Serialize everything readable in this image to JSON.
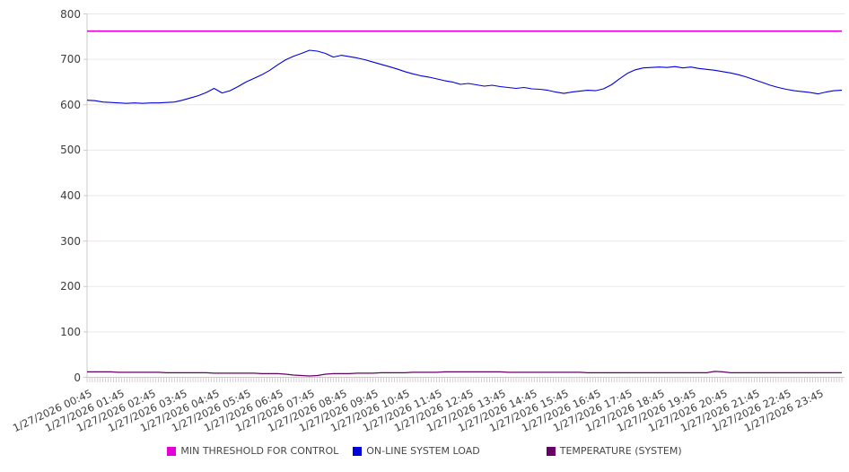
{
  "colors": {
    "background": "#ffffff",
    "grid": "#ece7e7",
    "axis": "#cfc9c9",
    "minor_tick": "#bdadbd",
    "label_text": "#3d3d3d",
    "legend_text": "#474747",
    "threshold_magenta": "#e600d8",
    "load_blue": "#0000dd",
    "temperature_purple": "#660066"
  },
  "legend": {
    "position": "bottom",
    "items": [
      {
        "label": "MIN THRESHOLD FOR CONTROL",
        "color": "#e600d8"
      },
      {
        "label": "ON-LINE SYSTEM LOAD",
        "color": "#0000dd"
      },
      {
        "label": "TEMPERATURE (SYSTEM)",
        "color": "#660066"
      }
    ]
  },
  "chart_data": {
    "type": "line",
    "title": "",
    "xlabel": "",
    "ylabel": "",
    "ylim": [
      0,
      800
    ],
    "y_ticks": [
      0,
      100,
      200,
      300,
      400,
      500,
      600,
      700,
      800
    ],
    "grid": true,
    "legend_position": "bottom",
    "sample_interval_minutes": 15,
    "x_tick_labels": [
      "1/27/2026 00:45",
      "1/27/2026 01:45",
      "1/27/2026 02:45",
      "1/27/2026 03:45",
      "1/27/2026 04:45",
      "1/27/2026 05:45",
      "1/27/2026 06:45",
      "1/27/2026 07:45",
      "1/27/2026 08:45",
      "1/27/2026 09:45",
      "1/27/2026 10:45",
      "1/27/2026 11:45",
      "1/27/2026 12:45",
      "1/27/2026 13:45",
      "1/27/2026 14:45",
      "1/27/2026 15:45",
      "1/27/2026 16:45",
      "1/27/2026 17:45",
      "1/27/2026 18:45",
      "1/27/2026 19:45",
      "1/27/2026 20:45",
      "1/27/2026 21:45",
      "1/27/2026 22:45",
      "1/27/2026 23:45"
    ],
    "samples_per_x_tick": 4,
    "minor_ticks_per_sample": 3,
    "series": [
      {
        "name": "MIN THRESHOLD FOR CONTROL",
        "color": "#e600d8",
        "width": 1.6,
        "constant": 762
      },
      {
        "name": "ON-LINE SYSTEM LOAD",
        "color": "#0000dd",
        "width": 1.1,
        "values": [
          610,
          609,
          606,
          605,
          604,
          603,
          604,
          603,
          604,
          604,
          605,
          606,
          610,
          615,
          620,
          627,
          636,
          626,
          631,
          640,
          650,
          658,
          666,
          676,
          688,
          699,
          707,
          713,
          720,
          718,
          713,
          705,
          709,
          706,
          703,
          699,
          694,
          689,
          684,
          679,
          673,
          668,
          664,
          661,
          657,
          653,
          650,
          645,
          647,
          644,
          641,
          643,
          640,
          638,
          636,
          638,
          635,
          634,
          632,
          628,
          625,
          628,
          630,
          632,
          631,
          635,
          644,
          657,
          669,
          677,
          681,
          682,
          683,
          682,
          684,
          681,
          683,
          680,
          678,
          676,
          673,
          670,
          666,
          661,
          655,
          649,
          643,
          638,
          634,
          631,
          629,
          627,
          624,
          628,
          631,
          632
        ]
      },
      {
        "name": "TEMPERATURE (SYSTEM)",
        "color": "#660066",
        "width": 1.2,
        "values": [
          12,
          12,
          12,
          12,
          11,
          11,
          11,
          11,
          11,
          11,
          10,
          10,
          10,
          10,
          10,
          10,
          9,
          9,
          9,
          9,
          9,
          9,
          8,
          8,
          8,
          7,
          5,
          4,
          3,
          4,
          7,
          8,
          8,
          8,
          9,
          9,
          9,
          10,
          10,
          10,
          10,
          11,
          11,
          11,
          11,
          12,
          12,
          12,
          12,
          12,
          12,
          12,
          12,
          11,
          11,
          11,
          11,
          11,
          11,
          11,
          11,
          11,
          11,
          10,
          10,
          10,
          10,
          10,
          10,
          10,
          10,
          10,
          10,
          10,
          10,
          10,
          10,
          10,
          10,
          13,
          12,
          10,
          10,
          10,
          10,
          10,
          10,
          10,
          10,
          10,
          10,
          10,
          10,
          10,
          10,
          10
        ]
      }
    ]
  }
}
